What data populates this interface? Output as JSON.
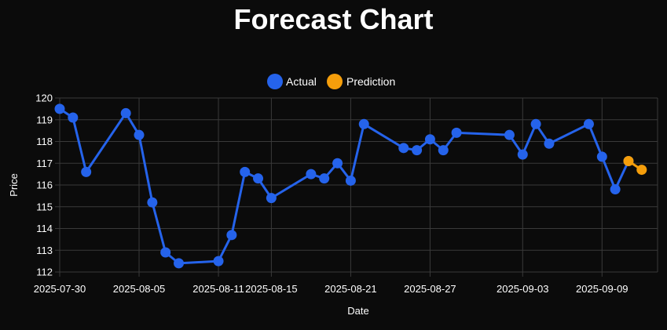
{
  "colors": {
    "background": "#0b0b0b",
    "grid": "#3a3a3a",
    "actual": "#2563eb",
    "prediction": "#f59e0b",
    "text": "#ffffff"
  },
  "chart_data": {
    "type": "line",
    "title": "Forecast Chart",
    "xlabel": "Date",
    "ylabel": "Price",
    "ylim": [
      112,
      120
    ],
    "yticks": [
      112,
      113,
      114,
      115,
      116,
      117,
      118,
      119,
      120
    ],
    "xticks": [
      "2025-07-30",
      "2025-08-05",
      "2025-08-11",
      "2025-08-15",
      "2025-08-21",
      "2025-08-27",
      "2025-09-03",
      "2025-09-09"
    ],
    "grid": true,
    "legend_position": "top-center",
    "x": [
      "2025-07-30",
      "2025-07-31",
      "2025-08-01",
      "2025-08-04",
      "2025-08-05",
      "2025-08-06",
      "2025-08-07",
      "2025-08-08",
      "2025-08-11",
      "2025-08-12",
      "2025-08-13",
      "2025-08-14",
      "2025-08-15",
      "2025-08-18",
      "2025-08-19",
      "2025-08-20",
      "2025-08-21",
      "2025-08-22",
      "2025-08-25",
      "2025-08-26",
      "2025-08-27",
      "2025-08-28",
      "2025-08-29",
      "2025-09-02",
      "2025-09-03",
      "2025-09-04",
      "2025-09-05",
      "2025-09-08",
      "2025-09-09",
      "2025-09-10",
      "2025-09-11",
      "2025-09-12"
    ],
    "series": [
      {
        "name": "Actual",
        "values": [
          119.5,
          119.1,
          116.6,
          119.3,
          118.3,
          115.2,
          112.9,
          112.4,
          112.5,
          113.7,
          116.6,
          116.3,
          115.4,
          116.5,
          116.3,
          117.0,
          116.2,
          118.8,
          117.7,
          117.6,
          118.1,
          117.6,
          118.4,
          118.3,
          117.4,
          118.8,
          117.9,
          118.8,
          117.3,
          115.8,
          117.1,
          null
        ]
      },
      {
        "name": "Prediction",
        "values": [
          null,
          null,
          null,
          null,
          null,
          null,
          null,
          null,
          null,
          null,
          null,
          null,
          null,
          null,
          null,
          null,
          null,
          null,
          null,
          null,
          null,
          null,
          null,
          null,
          null,
          null,
          null,
          null,
          null,
          null,
          117.1,
          116.7
        ]
      }
    ]
  }
}
